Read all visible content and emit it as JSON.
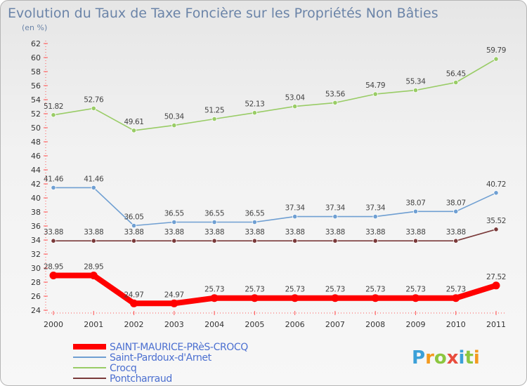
{
  "chart_data": {
    "type": "line",
    "title": "Evolution du Taux de Taxe Foncière sur les Propriétés Non Bâties",
    "subtitle": "(en %)",
    "x": [
      "2000",
      "2001",
      "2002",
      "2003",
      "2004",
      "2005",
      "2006",
      "2007",
      "2008",
      "2009",
      "2010",
      "2011"
    ],
    "ylim": [
      24,
      62
    ],
    "yticks": [
      "24",
      "26",
      "28",
      "30",
      "32",
      "34",
      "36",
      "38",
      "40",
      "42",
      "44",
      "46",
      "48",
      "50",
      "52",
      "54",
      "56",
      "58",
      "60",
      "62"
    ],
    "grid": false,
    "series": [
      {
        "name": "SAINT-MAURICE-PRèS-CROCQ",
        "color": "#ff0000",
        "values": [
          28.95,
          28.95,
          24.97,
          24.97,
          25.73,
          25.73,
          25.73,
          25.73,
          25.73,
          25.73,
          25.73,
          27.52
        ],
        "labels": [
          "28.95",
          "28.95",
          "24.97",
          "24.97",
          "25.73",
          "25.73",
          "25.73",
          "25.73",
          "25.73",
          "25.73",
          "25.73",
          "27.52"
        ]
      },
      {
        "name": "Saint-Pardoux-d'Arnet",
        "color": "#6f9fd2",
        "values": [
          41.46,
          41.46,
          36.05,
          36.55,
          36.55,
          36.55,
          37.34,
          37.34,
          37.34,
          38.07,
          38.07,
          40.72
        ],
        "labels": [
          "41.46",
          "41.46",
          "36.05",
          "36.55",
          "36.55",
          "36.55",
          "37.34",
          "37.34",
          "37.34",
          "38.07",
          "38.07",
          "40.72"
        ]
      },
      {
        "name": "Crocq",
        "color": "#99cc66",
        "values": [
          51.82,
          52.76,
          49.61,
          50.34,
          51.25,
          52.13,
          53.04,
          53.56,
          54.79,
          55.34,
          56.45,
          59.79
        ],
        "labels": [
          "51.82",
          "52.76",
          "49.61",
          "50.34",
          "51.25",
          "52.13",
          "53.04",
          "53.56",
          "54.79",
          "55.34",
          "56.45",
          "59.79"
        ]
      },
      {
        "name": "Pontcharraud",
        "color": "#7a3a3a",
        "values": [
          33.88,
          33.88,
          33.88,
          33.88,
          33.88,
          33.88,
          33.88,
          33.88,
          33.88,
          33.88,
          33.88,
          35.52
        ],
        "labels": [
          "33.88",
          "33.88",
          "33.88",
          "33.88",
          "33.88",
          "33.88",
          "33.88",
          "33.88",
          "33.88",
          "33.88",
          "33.88",
          "35.52"
        ]
      }
    ],
    "legend_position": "bottom-left"
  },
  "logo": {
    "text": "Proxiti"
  }
}
